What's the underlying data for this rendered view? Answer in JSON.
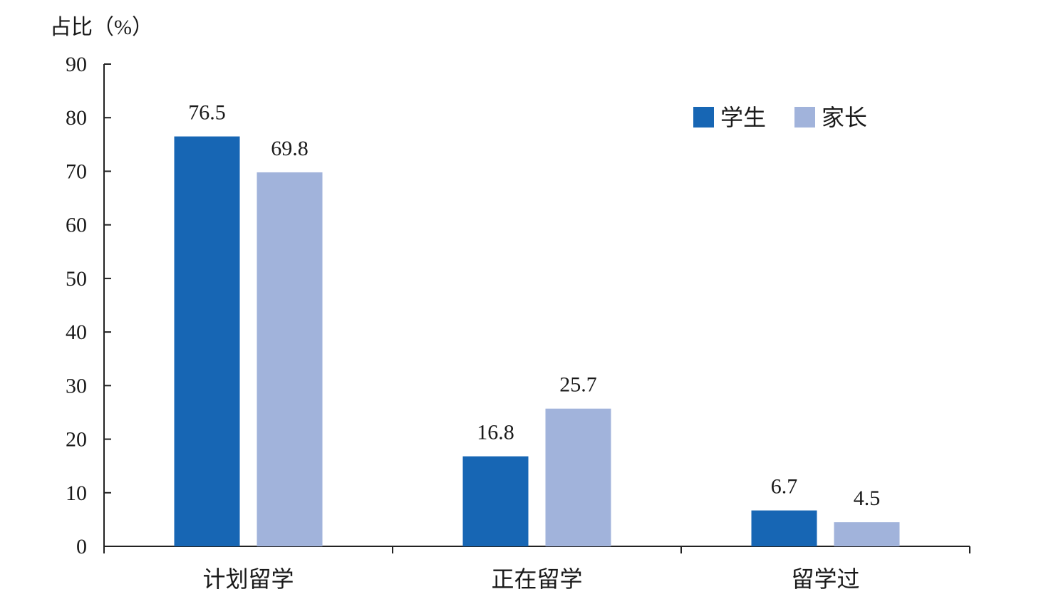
{
  "chart_data": {
    "type": "bar",
    "ylabel": "占比（%）",
    "categories": [
      "计划留学",
      "正在留学",
      "留学过"
    ],
    "series": [
      {
        "name": "学生",
        "values": [
          76.5,
          16.8,
          6.7
        ],
        "color": "#1766b4"
      },
      {
        "name": "家长",
        "values": [
          69.8,
          25.7,
          4.5
        ],
        "color": "#a1b3db"
      }
    ],
    "data_labels": [
      [
        "76.5",
        "16.8",
        "6.7"
      ],
      [
        "69.8",
        "25.7",
        "4.5"
      ]
    ],
    "ylim": [
      0,
      90
    ],
    "yticks": [
      0,
      10,
      20,
      30,
      40,
      50,
      60,
      70,
      80,
      90
    ],
    "legend": "top-right",
    "grid": false
  }
}
